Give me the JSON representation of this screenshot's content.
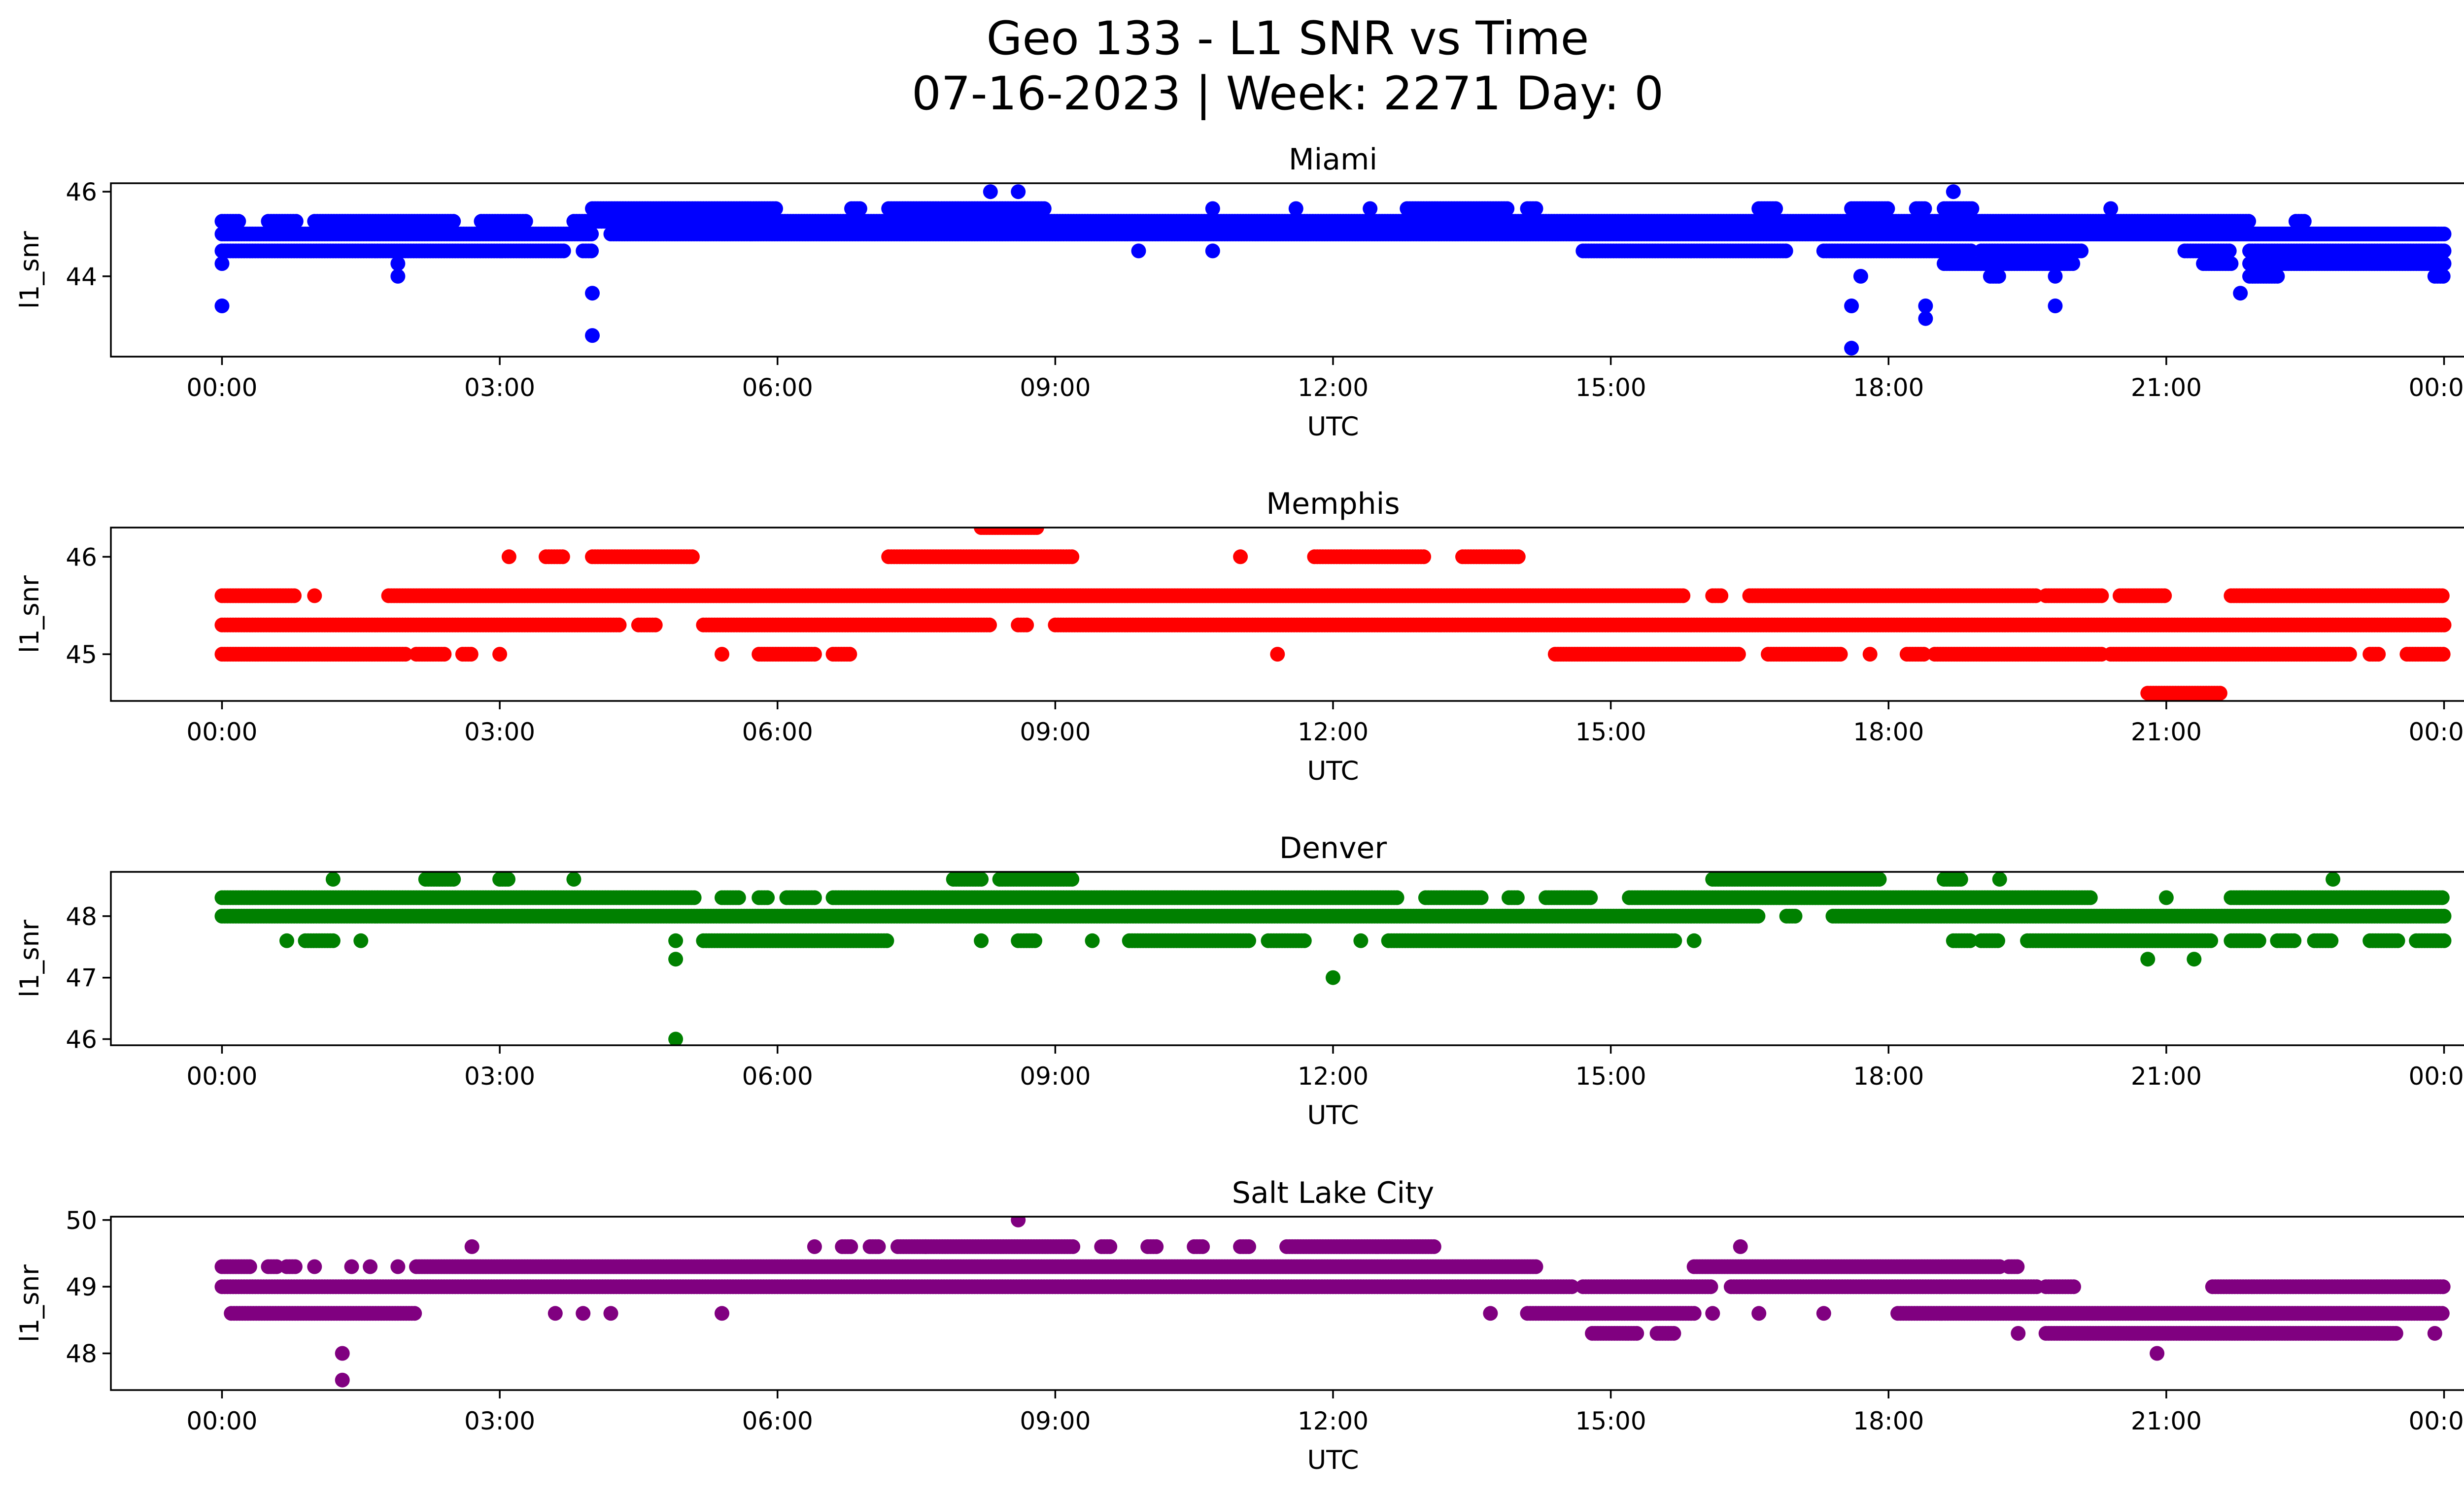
{
  "figure": {
    "title_line1": "Geo 133 - L1 SNR vs Time",
    "title_line2": "07-16-2023 | Week: 2271 Day: 0"
  },
  "chart_data": [
    {
      "type": "scatter",
      "title": "Miami",
      "xlabel": "UTC",
      "ylabel": "l1_snr",
      "color": "#0000ff",
      "x_range_hours": [
        -1.2,
        25.2
      ],
      "x_ticks": [
        "00:00",
        "03:00",
        "06:00",
        "09:00",
        "12:00",
        "15:00",
        "18:00",
        "21:00",
        "00:00"
      ],
      "ylim": [
        42.1,
        46.2
      ],
      "y_ticks": [
        44,
        46
      ],
      "bands": [
        {
          "y": 44.6,
          "segments": [
            [
              0,
              3.7
            ],
            [
              3.9,
              4.0
            ],
            [
              9.9,
              9.9
            ],
            [
              10.7,
              10.7
            ],
            [
              14.7,
              16.9
            ],
            [
              17.3,
              18.9
            ],
            [
              19.0,
              20.1
            ],
            [
              21.2,
              21.7
            ]
          ]
        },
        {
          "y": 45.0,
          "segments": [
            [
              0,
              4.0
            ],
            [
              4.2,
              24.0
            ]
          ]
        },
        {
          "y": 45.3,
          "segments": [
            [
              0,
              0.2
            ],
            [
              0.5,
              0.8
            ],
            [
              1.0,
              2.5
            ],
            [
              2.8,
              3.3
            ],
            [
              3.8,
              21.9
            ],
            [
              22.4,
              22.5
            ]
          ]
        },
        {
          "y": 45.6,
          "segments": [
            [
              4.0,
              6.0
            ],
            [
              6.8,
              6.9
            ],
            [
              7.2,
              8.9
            ],
            [
              10.7,
              10.7
            ],
            [
              11.6,
              11.6
            ],
            [
              12.4,
              12.4
            ],
            [
              12.8,
              13.9
            ],
            [
              14.1,
              14.2
            ],
            [
              16.6,
              16.8
            ],
            [
              17.6,
              18.0
            ],
            [
              18.3,
              18.4
            ],
            [
              18.6,
              18.9
            ],
            [
              20.4,
              20.4
            ]
          ]
        },
        {
          "y": 44.3,
          "segments": [
            [
              18.6,
              19.0
            ],
            [
              19.0,
              19.3
            ],
            [
              19.3,
              20.0
            ],
            [
              21.4,
              21.7
            ],
            [
              21.9,
              24.0
            ]
          ]
        },
        {
          "y": 44.6,
          "segments": [
            [
              21.9,
              24.0
            ]
          ]
        },
        {
          "y": 45.0,
          "segments": [
            [
              20.0,
              23.9
            ]
          ]
        },
        {
          "y": 44.0,
          "segments": [
            [
              19.1,
              19.2
            ],
            [
              21.9,
              22.2
            ],
            [
              23.9,
              24.0
            ]
          ]
        }
      ],
      "points": [
        {
          "x": 0.0,
          "y": 43.3
        },
        {
          "x": 0.0,
          "y": 44.3
        },
        {
          "x": 1.9,
          "y": 44.0
        },
        {
          "x": 1.9,
          "y": 44.3
        },
        {
          "x": 4.0,
          "y": 42.6
        },
        {
          "x": 4.0,
          "y": 43.6
        },
        {
          "x": 8.3,
          "y": 46.0
        },
        {
          "x": 8.6,
          "y": 46.0
        },
        {
          "x": 17.6,
          "y": 42.3
        },
        {
          "x": 17.6,
          "y": 43.3
        },
        {
          "x": 17.7,
          "y": 44.0
        },
        {
          "x": 18.4,
          "y": 43.0
        },
        {
          "x": 18.4,
          "y": 43.3
        },
        {
          "x": 18.7,
          "y": 46.0
        },
        {
          "x": 19.8,
          "y": 43.3
        },
        {
          "x": 19.8,
          "y": 44.0
        },
        {
          "x": 21.8,
          "y": 43.6
        },
        {
          "x": 23.9,
          "y": 45.0
        }
      ]
    },
    {
      "type": "scatter",
      "title": "Memphis",
      "xlabel": "UTC",
      "ylabel": "l1_snr",
      "color": "#ff0000",
      "x_range_hours": [
        -1.2,
        25.2
      ],
      "x_ticks": [
        "00:00",
        "03:00",
        "06:00",
        "09:00",
        "12:00",
        "15:00",
        "18:00",
        "21:00",
        "00:00"
      ],
      "ylim": [
        44.52,
        46.3
      ],
      "y_ticks": [
        45,
        46
      ],
      "bands": [
        {
          "y": 45.0,
          "segments": [
            [
              0,
              2.0
            ],
            [
              2.1,
              2.4
            ],
            [
              2.6,
              2.7
            ],
            [
              3.0,
              3.0
            ],
            [
              5.4,
              5.4
            ],
            [
              5.8,
              6.4
            ],
            [
              6.6,
              6.8
            ],
            [
              11.4,
              11.4
            ],
            [
              14.4,
              16.4
            ],
            [
              16.7,
              17.5
            ],
            [
              17.8,
              17.8
            ],
            [
              18.2,
              18.4
            ],
            [
              18.5,
              20.3
            ],
            [
              20.4,
              23.0
            ],
            [
              23.2,
              23.3
            ],
            [
              23.6,
              24.0
            ]
          ]
        },
        {
          "y": 45.3,
          "segments": [
            [
              0,
              4.3
            ],
            [
              4.5,
              4.7
            ],
            [
              5.2,
              8.3
            ],
            [
              8.6,
              8.7
            ],
            [
              9.0,
              24.0
            ]
          ]
        },
        {
          "y": 45.6,
          "segments": [
            [
              0,
              0.8
            ],
            [
              1.0,
              1.0
            ],
            [
              1.8,
              15.8
            ],
            [
              16.1,
              16.2
            ],
            [
              16.5,
              19.6
            ],
            [
              19.7,
              20.3
            ],
            [
              20.5,
              21.0
            ],
            [
              21.7,
              24.0
            ]
          ]
        },
        {
          "y": 46.0,
          "segments": [
            [
              3.1,
              3.1
            ],
            [
              3.5,
              3.7
            ],
            [
              4.0,
              5.1
            ],
            [
              7.2,
              9.2
            ],
            [
              11.0,
              11.0
            ],
            [
              11.8,
              12.2
            ],
            [
              12.2,
              13.0
            ],
            [
              13.4,
              14.0
            ]
          ]
        },
        {
          "y": 46.3,
          "segments": [
            [
              8.2,
              8.8
            ]
          ]
        },
        {
          "y": 44.6,
          "segments": [
            [
              20.8,
              21.6
            ]
          ]
        }
      ],
      "points": []
    },
    {
      "type": "scatter",
      "title": "Denver",
      "xlabel": "UTC",
      "ylabel": "l1_snr",
      "color": "#008000",
      "x_range_hours": [
        -1.2,
        25.2
      ],
      "x_ticks": [
        "00:00",
        "03:00",
        "06:00",
        "09:00",
        "12:00",
        "15:00",
        "18:00",
        "21:00",
        "00:00"
      ],
      "ylim": [
        45.9,
        48.72
      ],
      "y_ticks": [
        46,
        47,
        48
      ],
      "bands": [
        {
          "y": 48.0,
          "segments": [
            [
              0,
              16.6
            ],
            [
              16.9,
              17.0
            ],
            [
              17.4,
              24.0
            ]
          ]
        },
        {
          "y": 48.3,
          "segments": [
            [
              0,
              5.1
            ],
            [
              5.4,
              5.6
            ],
            [
              5.8,
              5.9
            ],
            [
              6.1,
              6.4
            ],
            [
              6.6,
              12.7
            ],
            [
              13.0,
              13.6
            ],
            [
              13.9,
              14.0
            ],
            [
              14.3,
              14.8
            ],
            [
              15.2,
              20.2
            ],
            [
              21.7,
              24.0
            ]
          ]
        },
        {
          "y": 47.6,
          "segments": [
            [
              0.7,
              0.7
            ],
            [
              0.9,
              1.2
            ],
            [
              1.5,
              1.5
            ],
            [
              4.9,
              4.9
            ],
            [
              5.2,
              7.2
            ],
            [
              8.2,
              8.2
            ],
            [
              8.6,
              8.8
            ],
            [
              9.4,
              9.4
            ],
            [
              9.8,
              11.1
            ],
            [
              11.3,
              11.7
            ],
            [
              12.6,
              15.7
            ],
            [
              15.9,
              15.9
            ],
            [
              18.7,
              18.9
            ],
            [
              19.0,
              19.2
            ],
            [
              19.5,
              21.5
            ],
            [
              21.7,
              22.0
            ],
            [
              22.2,
              22.4
            ],
            [
              22.6,
              22.8
            ],
            [
              23.2,
              23.5
            ],
            [
              23.7,
              24.0
            ]
          ]
        },
        {
          "y": 48.6,
          "segments": [
            [
              1.2,
              1.2
            ],
            [
              2.2,
              2.5
            ],
            [
              3.0,
              3.1
            ],
            [
              3.8,
              3.8
            ],
            [
              7.9,
              8.2
            ],
            [
              8.4,
              9.2
            ],
            [
              16.1,
              17.9
            ],
            [
              18.6,
              18.8
            ],
            [
              19.2,
              19.2
            ],
            [
              22.8,
              22.8
            ]
          ]
        }
      ],
      "points": [
        {
          "x": 4.9,
          "y": 46.0
        },
        {
          "x": 4.9,
          "y": 47.3
        },
        {
          "x": 12.0,
          "y": 47.0
        },
        {
          "x": 12.3,
          "y": 47.6
        },
        {
          "x": 20.8,
          "y": 47.3
        },
        {
          "x": 21.0,
          "y": 48.3
        },
        {
          "x": 21.3,
          "y": 47.3
        }
      ]
    },
    {
      "type": "scatter",
      "title": "Salt Lake City",
      "xlabel": "UTC",
      "ylabel": "l1_snr",
      "color": "#800080",
      "x_range_hours": [
        -1.2,
        25.2
      ],
      "x_ticks": [
        "00:00",
        "03:00",
        "06:00",
        "09:00",
        "12:00",
        "15:00",
        "18:00",
        "21:00",
        "00:00"
      ],
      "ylim": [
        47.45,
        50.05
      ],
      "y_ticks": [
        48,
        49,
        50
      ],
      "bands": [
        {
          "y": 49.0,
          "segments": [
            [
              0,
              14.6
            ],
            [
              14.7,
              16.1
            ],
            [
              16.3,
              19.6
            ],
            [
              19.7,
              20.0
            ],
            [
              21.5,
              24.0
            ]
          ]
        },
        {
          "y": 49.3,
          "segments": [
            [
              0,
              0.3
            ],
            [
              0.5,
              0.6
            ],
            [
              0.7,
              0.8
            ],
            [
              1.0,
              1.0
            ],
            [
              1.4,
              1.4
            ],
            [
              1.6,
              1.6
            ],
            [
              1.9,
              1.9
            ],
            [
              2.1,
              14.2
            ],
            [
              15.9,
              19.2
            ],
            [
              19.3,
              19.4
            ]
          ]
        },
        {
          "y": 48.6,
          "segments": [
            [
              0.1,
              2.1
            ],
            [
              3.6,
              3.6
            ],
            [
              3.9,
              3.9
            ],
            [
              4.2,
              4.2
            ],
            [
              5.4,
              5.4
            ],
            [
              13.7,
              13.7
            ],
            [
              14.1,
              15.9
            ],
            [
              16.1,
              16.1
            ],
            [
              16.6,
              16.6
            ],
            [
              17.3,
              17.3
            ],
            [
              18.1,
              24.0
            ]
          ]
        },
        {
          "y": 49.6,
          "segments": [
            [
              2.7,
              2.7
            ],
            [
              6.4,
              6.4
            ],
            [
              6.7,
              6.8
            ],
            [
              7.0,
              7.1
            ],
            [
              7.3,
              7.6
            ],
            [
              7.6,
              9.2
            ],
            [
              9.5,
              9.6
            ],
            [
              10.0,
              10.1
            ],
            [
              10.5,
              10.6
            ],
            [
              11.0,
              11.1
            ],
            [
              11.5,
              13.1
            ],
            [
              16.4,
              16.4
            ]
          ]
        },
        {
          "y": 48.3,
          "segments": [
            [
              14.8,
              15.3
            ],
            [
              15.5,
              15.7
            ],
            [
              19.4,
              19.4
            ],
            [
              19.7,
              23.5
            ],
            [
              23.9,
              23.9
            ]
          ]
        }
      ],
      "points": [
        {
          "x": 1.3,
          "y": 47.6
        },
        {
          "x": 1.3,
          "y": 48.0
        },
        {
          "x": 8.6,
          "y": 50.0
        },
        {
          "x": 20.9,
          "y": 48.0
        }
      ]
    }
  ]
}
